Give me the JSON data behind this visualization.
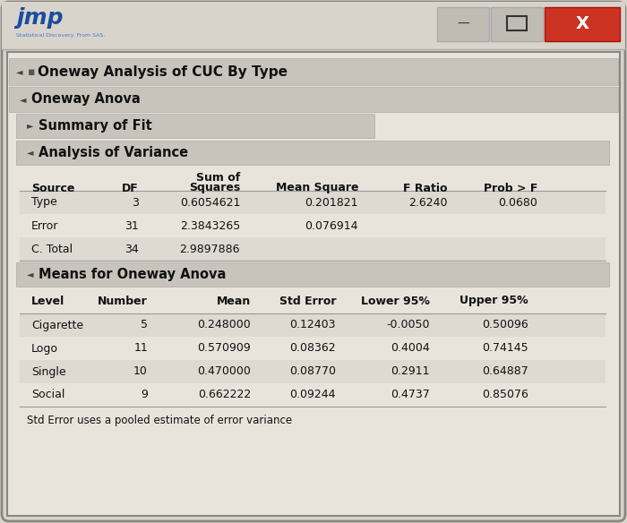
{
  "title_bar_text": "Oneway Analysis of CUC By Type",
  "oneway_anova_text": "Oneway Anova",
  "summary_fit_text": "Summary of Fit",
  "anova_section_text": "Analysis of Variance",
  "means_section_text": "Means for Oneway Anova",
  "footer_text": "Std Error uses a pooled estimate of error variance",
  "anova_headers_line1": [
    "",
    "",
    "Sum of",
    "",
    "",
    ""
  ],
  "anova_headers_line2": [
    "Source",
    "DF",
    "Squares",
    "Mean Square",
    "F Ratio",
    "Prob > F"
  ],
  "anova_rows": [
    [
      "Type",
      "3",
      "0.6054621",
      "0.201821",
      "2.6240",
      "0.0680"
    ],
    [
      "Error",
      "31",
      "2.3843265",
      "0.076914",
      "",
      ""
    ],
    [
      "C. Total",
      "34",
      "2.9897886",
      "",
      "",
      ""
    ]
  ],
  "means_headers": [
    "Level",
    "Number",
    "Mean",
    "Std Error",
    "Lower 95%",
    "Upper 95%"
  ],
  "means_rows": [
    [
      "Cigarette",
      "5",
      "0.248000",
      "0.12403",
      "-0.0050",
      "0.50096"
    ],
    [
      "Logo",
      "11",
      "0.570909",
      "0.08362",
      "0.4004",
      "0.74145"
    ],
    [
      "Single",
      "10",
      "0.470000",
      "0.08770",
      "0.2911",
      "0.64887"
    ],
    [
      "Social",
      "9",
      "0.662222",
      "0.09244",
      "0.4737",
      "0.85076"
    ]
  ],
  "bg_color": "#d8d4cc",
  "inner_bg": "#e8e4dc",
  "content_bg": "#dedad4",
  "section_bg": "#c8c4bc",
  "row_even_bg": "#dedad2",
  "row_odd_bg": "#e8e4dc",
  "table_header_bg": "#d0ccc4",
  "jmp_blue": "#1a4d9e",
  "jmp_blue_light": "#4477cc",
  "red_btn": "#cc3322",
  "btn_bg": "#c0bcb4",
  "text_color": "#111111",
  "border_color": "#999999",
  "win_border": "#888880"
}
